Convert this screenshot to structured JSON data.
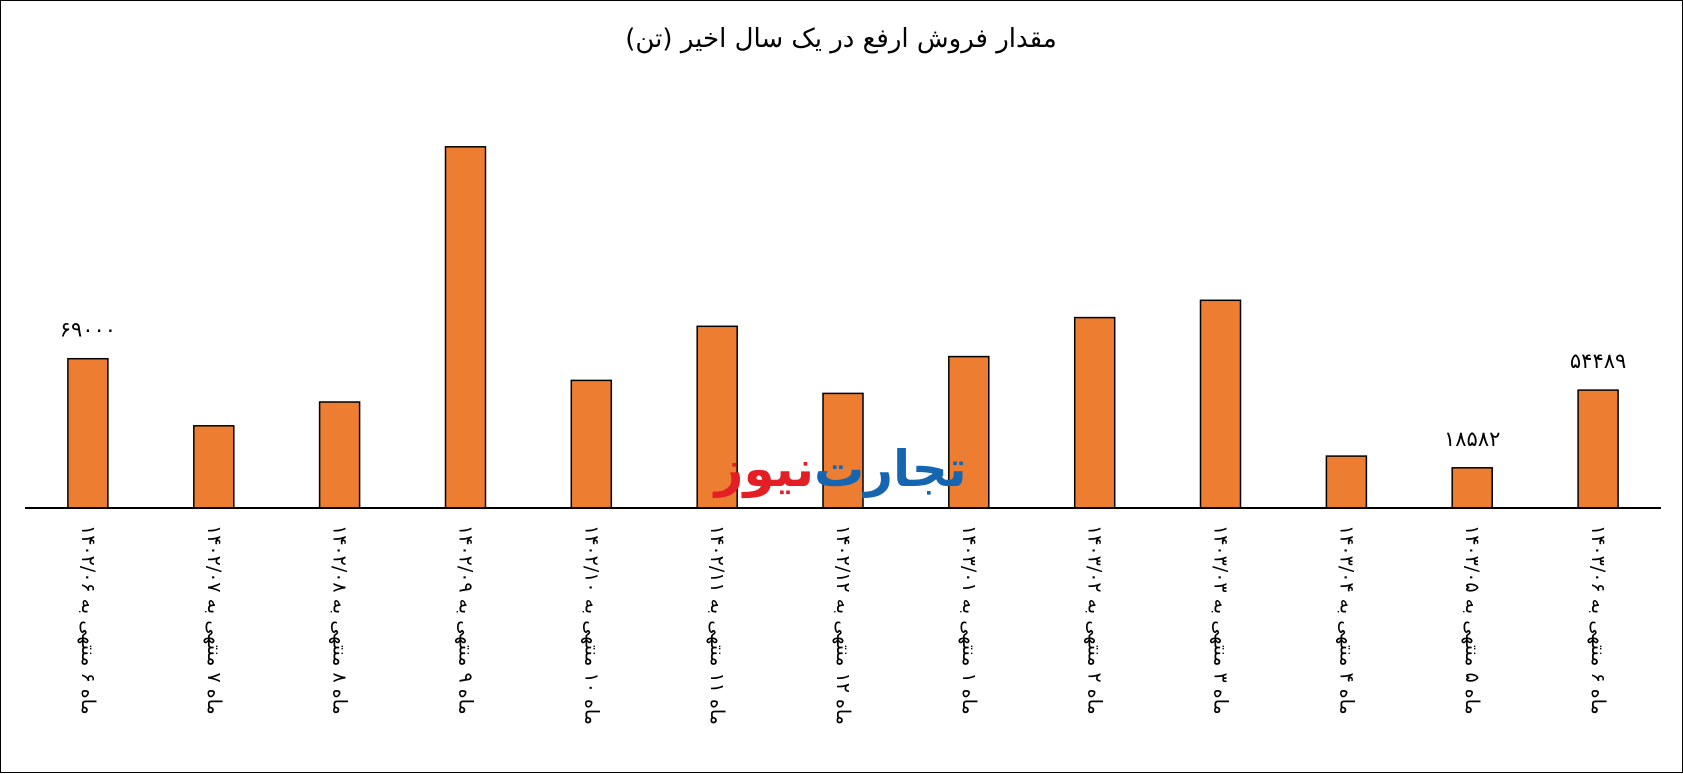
{
  "chart_data": {
    "type": "bar",
    "title": "مقدار فروش ارفع در یک سال اخیر (تن)",
    "xlabel": "",
    "ylabel": "",
    "categories": [
      "ماه ۶ منتهی به ۱۴۰۲/۰۶",
      "ماه ۷ منتهی به ۱۴۰۲/۰۷",
      "ماه ۸ منتهی به ۱۴۰۲/۰۸",
      "ماه ۹ منتهی به ۱۴۰۲/۰۹",
      "ماه ۱۰ منتهی به ۱۴۰۲/۱۰",
      "ماه ۱۱ منتهی به ۱۴۰۲/۱۱",
      "ماه ۱۲ منتهی به ۱۴۰۲/۱۲",
      "ماه ۱ منتهی به ۱۴۰۳/۰۱",
      "ماه ۲ منتهی به ۱۴۰۳/۰۲",
      "ماه ۳ منتهی به ۱۴۰۳/۰۳",
      "ماه ۴ منتهی به ۱۴۰۳/۰۴",
      "ماه ۵ منتهی به ۱۴۰۳/۰۵",
      "ماه ۶ منتهی به ۱۴۰۳/۰۶"
    ],
    "values": [
      69000,
      38000,
      49000,
      167000,
      59000,
      84000,
      53000,
      70000,
      88000,
      96000,
      24000,
      18582,
      54489
    ],
    "data_labels": [
      {
        "index": 0,
        "text": "۶۹۰۰۰"
      },
      {
        "index": 11,
        "text": "۱۸۵۸۲"
      },
      {
        "index": 12,
        "text": "۵۴۴۸۹"
      }
    ],
    "ylim": [
      0,
      190000
    ],
    "grid": false,
    "legend": "none",
    "bar_color": "#ED7D31",
    "bar_edge_color": "#000000"
  },
  "watermark": {
    "part_red": "نیوز",
    "part_blue": "تجارت",
    "red_color": "#E31E24",
    "blue_color": "#1565B0"
  }
}
